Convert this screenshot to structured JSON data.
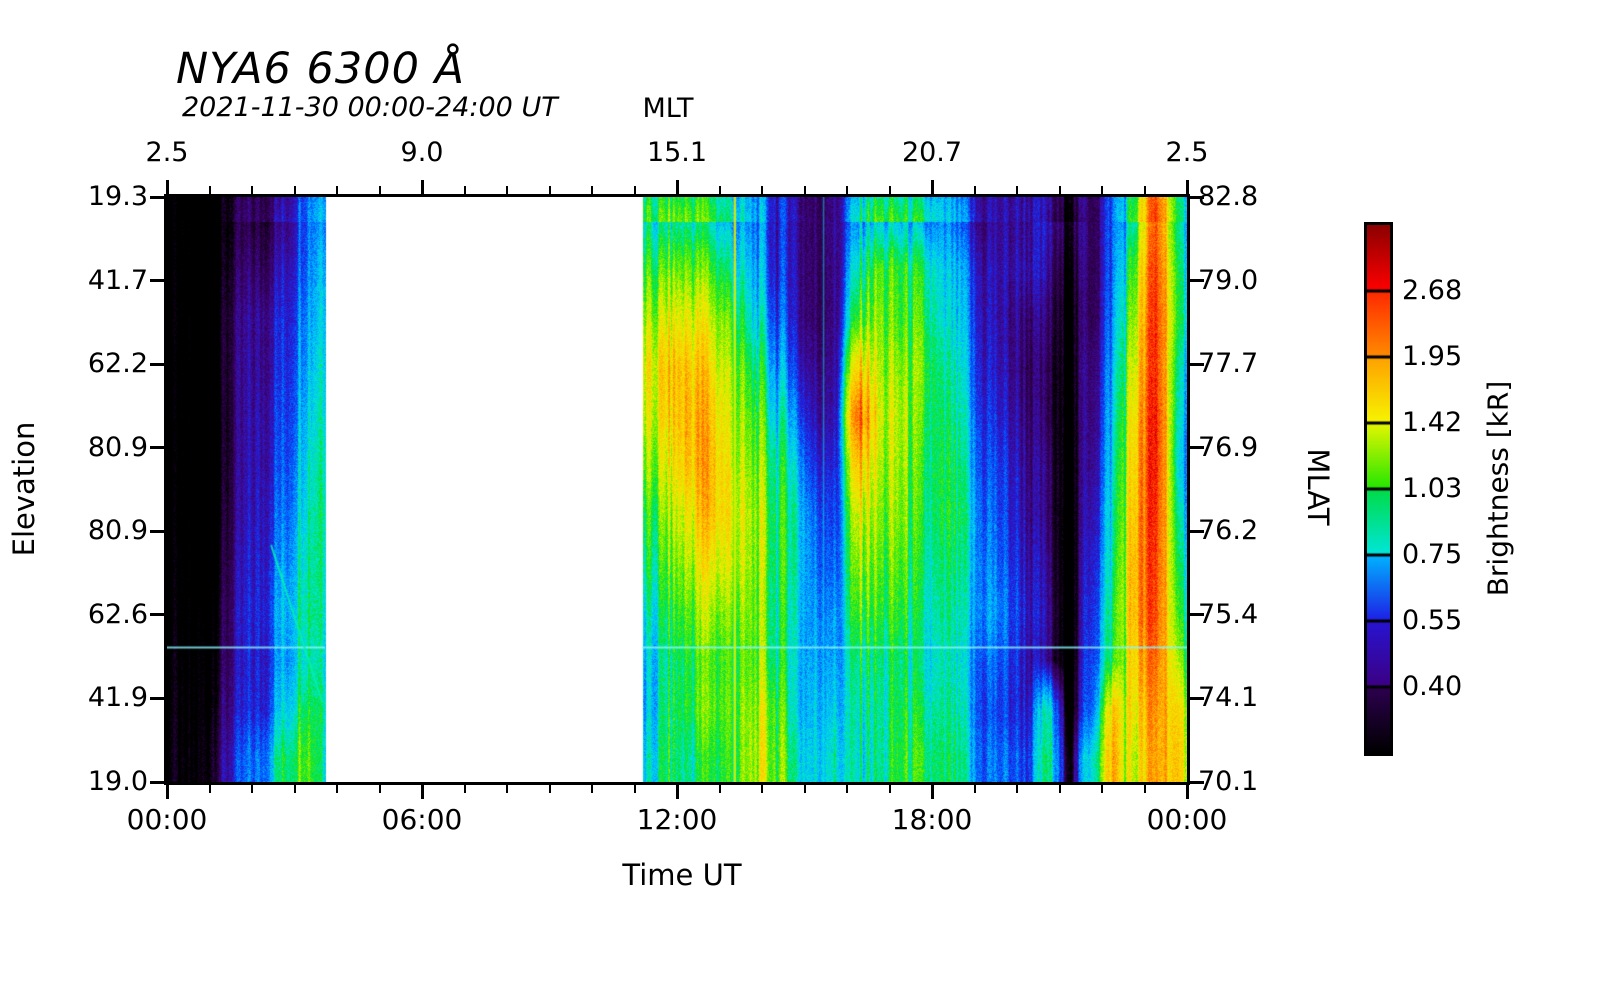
{
  "figure": {
    "title": "NYA6 6300 Å",
    "subtitle": "2021-11-30 00:00-24:00 UT",
    "background_color": "#ffffff"
  },
  "axes": {
    "top": {
      "label": "MLT",
      "tick_labels": [
        "2.5",
        "9.0",
        "15.1",
        "20.7",
        "2.5"
      ],
      "tick_hours": [
        0,
        6,
        12,
        18,
        24
      ],
      "minor_every_hours": 1
    },
    "bottom": {
      "label": "Time UT",
      "tick_labels": [
        "00:00",
        "06:00",
        "12:00",
        "18:00",
        "00:00"
      ],
      "tick_hours": [
        0,
        6,
        12,
        18,
        24
      ],
      "minor_every_hours": 1
    },
    "left": {
      "label": "Elevation",
      "tick_labels": [
        "19.3",
        "41.7",
        "62.2",
        "80.9",
        "80.9",
        "62.6",
        "41.9",
        "19.0"
      ]
    },
    "right": {
      "label": "MLAT",
      "tick_labels": [
        "82.8",
        "79.0",
        "77.7",
        "76.9",
        "76.2",
        "75.4",
        "74.1",
        "70.1"
      ]
    }
  },
  "colorbar": {
    "label": "Brightness [kR]",
    "tick_labels": [
      "2.68",
      "1.95",
      "1.42",
      "1.03",
      "0.75",
      "0.55",
      "0.40"
    ],
    "segment_gradients_top_to_bottom": [
      [
        "#8c0000",
        "#ff0000"
      ],
      [
        "#ff2800",
        "#ff8c00"
      ],
      [
        "#ffa000",
        "#f6f600"
      ],
      [
        "#e6f600",
        "#22e600"
      ],
      [
        "#00dc46",
        "#00e6dc"
      ],
      [
        "#00b4ff",
        "#1e1ee6"
      ],
      [
        "#2814d2",
        "#3c0082"
      ],
      [
        "#2d0050",
        "#000000"
      ]
    ]
  },
  "chart_data": {
    "type": "heatmap",
    "title": "NYA6 6300 Å",
    "subtitle": "2021-11-30 00:00-24:00 UT",
    "xlabel": "Time UT",
    "x_range_hours": [
      0,
      24
    ],
    "top_axis": {
      "label": "MLT",
      "values_at_0_6_12_18_24_UT": [
        2.5,
        9.0,
        15.1,
        20.7,
        2.5
      ]
    },
    "left_axis": {
      "label": "Elevation",
      "tick_values_top_to_bottom": [
        19.3,
        41.7,
        62.2,
        80.9,
        80.9,
        62.6,
        41.9,
        19.0
      ]
    },
    "right_axis": {
      "label": "MLAT",
      "tick_values_top_to_bottom": [
        82.8,
        79.0,
        77.7,
        76.9,
        76.2,
        75.4,
        74.1,
        70.1
      ]
    },
    "colorbar_tick_values_kR": [
      2.68,
      1.95,
      1.42,
      1.03,
      0.75,
      0.55,
      0.4
    ],
    "data_gap_ut": [
      3.72,
      11.18
    ],
    "col_step_hours": 0.5,
    "n_rows": 12,
    "n_cols": 48,
    "values_kR_rows_top_to_bottom": [
      [
        0.31,
        0.31,
        0.33,
        0.36,
        0.4,
        0.48,
        0.72,
        1.0,
        null,
        null,
        null,
        null,
        null,
        null,
        null,
        null,
        null,
        null,
        null,
        null,
        null,
        null,
        1.1,
        1.15,
        1.2,
        1.1,
        1.05,
        0.85,
        0.68,
        0.58,
        0.55,
        0.52,
        0.95,
        1.05,
        0.95,
        0.85,
        0.75,
        0.62,
        0.55,
        0.5,
        0.52,
        0.55,
        0.52,
        0.55,
        0.7,
        1.3,
        2.6,
        1.0
      ],
      [
        0.3,
        0.31,
        0.34,
        0.4,
        0.46,
        0.55,
        0.75,
        1.1,
        null,
        null,
        null,
        null,
        null,
        null,
        null,
        null,
        null,
        null,
        null,
        null,
        null,
        null,
        1.35,
        1.5,
        1.55,
        1.45,
        1.3,
        0.95,
        0.7,
        0.6,
        0.55,
        0.5,
        1.2,
        1.5,
        1.3,
        1.2,
        0.85,
        0.75,
        0.6,
        0.52,
        0.55,
        0.5,
        0.45,
        0.55,
        0.7,
        1.6,
        2.8,
        1.1
      ],
      [
        0.3,
        0.32,
        0.36,
        0.43,
        0.52,
        0.6,
        0.8,
        1.15,
        null,
        null,
        null,
        null,
        null,
        null,
        null,
        null,
        null,
        null,
        null,
        null,
        null,
        null,
        1.6,
        1.8,
        1.9,
        1.75,
        1.6,
        1.05,
        0.8,
        0.62,
        0.55,
        0.5,
        1.5,
        1.6,
        1.35,
        1.3,
        0.9,
        0.8,
        0.62,
        0.5,
        0.48,
        0.45,
        0.42,
        0.55,
        0.75,
        1.8,
        2.9,
        1.15
      ],
      [
        0.3,
        0.31,
        0.36,
        0.44,
        0.52,
        0.62,
        0.85,
        1.2,
        null,
        null,
        null,
        null,
        null,
        null,
        null,
        null,
        null,
        null,
        null,
        null,
        null,
        null,
        1.8,
        2.1,
        2.2,
        2.0,
        1.8,
        1.25,
        0.95,
        0.7,
        0.6,
        0.52,
        2.2,
        1.7,
        1.5,
        1.4,
        1.0,
        0.85,
        0.65,
        0.52,
        0.45,
        0.42,
        0.4,
        0.6,
        0.8,
        2.0,
        2.9,
        1.0
      ],
      [
        0.3,
        0.31,
        0.35,
        0.44,
        0.55,
        0.65,
        0.9,
        1.25,
        null,
        null,
        null,
        null,
        null,
        null,
        null,
        null,
        null,
        null,
        null,
        null,
        null,
        null,
        1.7,
        2.0,
        2.3,
        2.2,
        1.9,
        1.4,
        1.1,
        0.85,
        0.65,
        0.55,
        2.9,
        1.8,
        1.6,
        1.3,
        1.05,
        0.9,
        0.7,
        0.55,
        0.48,
        0.42,
        0.38,
        0.62,
        0.85,
        2.2,
        3.0,
        0.95
      ],
      [
        0.3,
        0.31,
        0.35,
        0.45,
        0.56,
        0.68,
        0.95,
        1.3,
        null,
        null,
        null,
        null,
        null,
        null,
        null,
        null,
        null,
        null,
        null,
        null,
        null,
        null,
        1.5,
        1.8,
        2.2,
        2.3,
        2.0,
        1.5,
        1.25,
        1.0,
        0.75,
        0.6,
        2.3,
        1.7,
        1.55,
        1.25,
        1.1,
        0.95,
        0.75,
        0.6,
        0.5,
        0.45,
        0.36,
        0.65,
        0.9,
        2.3,
        3.0,
        0.9
      ],
      [
        0.3,
        0.31,
        0.36,
        0.46,
        0.58,
        0.72,
        1.0,
        1.35,
        null,
        null,
        null,
        null,
        null,
        null,
        null,
        null,
        null,
        null,
        null,
        null,
        null,
        null,
        1.3,
        1.6,
        1.9,
        2.2,
        2.1,
        1.6,
        1.3,
        1.1,
        0.85,
        0.65,
        1.9,
        1.6,
        1.5,
        1.2,
        1.1,
        1.0,
        0.8,
        0.62,
        0.52,
        0.45,
        0.34,
        0.7,
        0.95,
        2.4,
        2.9,
        1.0
      ],
      [
        0.3,
        0.32,
        0.38,
        0.48,
        0.6,
        0.78,
        1.05,
        1.3,
        null,
        null,
        null,
        null,
        null,
        null,
        null,
        null,
        null,
        null,
        null,
        null,
        null,
        null,
        1.2,
        1.45,
        1.7,
        1.9,
        1.95,
        1.55,
        1.3,
        1.1,
        0.9,
        0.7,
        1.7,
        1.5,
        1.4,
        1.15,
        1.05,
        0.95,
        0.85,
        0.65,
        0.55,
        0.48,
        0.32,
        0.75,
        1.0,
        2.5,
        2.8,
        1.1
      ],
      [
        0.3,
        0.33,
        0.4,
        0.5,
        0.62,
        0.85,
        1.1,
        1.25,
        null,
        null,
        null,
        null,
        null,
        null,
        null,
        null,
        null,
        null,
        null,
        null,
        null,
        null,
        1.05,
        1.3,
        1.5,
        1.65,
        1.7,
        1.5,
        1.25,
        1.05,
        0.95,
        0.78,
        1.5,
        1.4,
        1.3,
        1.1,
        1.0,
        0.9,
        0.9,
        0.7,
        0.58,
        0.5,
        0.31,
        0.8,
        1.1,
        2.5,
        2.7,
        1.2
      ],
      [
        0.31,
        0.34,
        0.42,
        0.5,
        0.6,
        0.8,
        1.05,
        1.2,
        null,
        null,
        null,
        null,
        null,
        null,
        null,
        null,
        null,
        null,
        null,
        null,
        null,
        null,
        0.95,
        1.2,
        1.35,
        1.45,
        1.55,
        1.45,
        1.3,
        1.0,
        1.0,
        0.82,
        1.3,
        1.25,
        1.2,
        1.05,
        0.95,
        0.85,
        0.8,
        0.65,
        0.55,
        0.48,
        0.31,
        0.85,
        1.15,
        2.3,
        2.5,
        1.4
      ],
      [
        0.31,
        0.35,
        0.45,
        0.52,
        0.62,
        0.9,
        1.2,
        1.3,
        null,
        null,
        null,
        null,
        null,
        null,
        null,
        null,
        null,
        null,
        null,
        null,
        null,
        null,
        0.9,
        1.25,
        1.35,
        1.5,
        1.6,
        1.55,
        1.5,
        1.0,
        1.05,
        0.9,
        1.2,
        1.2,
        1.25,
        1.15,
        1.0,
        0.9,
        0.75,
        0.62,
        0.58,
        1.0,
        0.34,
        0.9,
        1.8,
        2.1,
        2.3,
        1.7
      ],
      [
        0.32,
        0.36,
        0.5,
        0.6,
        0.75,
        1.1,
        1.35,
        1.2,
        null,
        null,
        null,
        null,
        null,
        null,
        null,
        null,
        null,
        null,
        null,
        null,
        null,
        null,
        1.0,
        1.3,
        1.2,
        1.35,
        1.5,
        1.6,
        1.55,
        1.1,
        1.1,
        1.0,
        1.15,
        1.2,
        1.3,
        1.25,
        1.05,
        0.95,
        0.8,
        0.7,
        0.65,
        1.1,
        0.45,
        1.2,
        2.0,
        1.9,
        2.2,
        1.8
      ]
    ],
    "colormap_stops_kR_hex": [
      [
        0.3,
        "#000000"
      ],
      [
        0.36,
        "#24003a"
      ],
      [
        0.4,
        "#36005c"
      ],
      [
        0.47,
        "#3b0b99"
      ],
      [
        0.55,
        "#2020dd"
      ],
      [
        0.65,
        "#0064ff"
      ],
      [
        0.75,
        "#00b4ff"
      ],
      [
        0.88,
        "#00e6d2"
      ],
      [
        1.03,
        "#00e23c"
      ],
      [
        1.2,
        "#66ee00"
      ],
      [
        1.42,
        "#e8f000"
      ],
      [
        1.7,
        "#ffc800"
      ],
      [
        1.95,
        "#ff9000"
      ],
      [
        2.3,
        "#ff4600"
      ],
      [
        2.68,
        "#f00000"
      ],
      [
        3.0,
        "#8c0000"
      ]
    ],
    "artifact_features": {
      "horizontal_scan_line": {
        "y_frac_from_top": 0.77,
        "color": "#8cf5ff"
      },
      "diagonal_trace": {
        "from_ut": 2.45,
        "from_y_frac": 0.595,
        "to_ut": 3.66,
        "to_y_frac": 0.865,
        "color": "#00f0b4"
      },
      "vertical_line_yellow_ut": 13.36,
      "vertical_line_cyan_ut": 15.45
    }
  }
}
